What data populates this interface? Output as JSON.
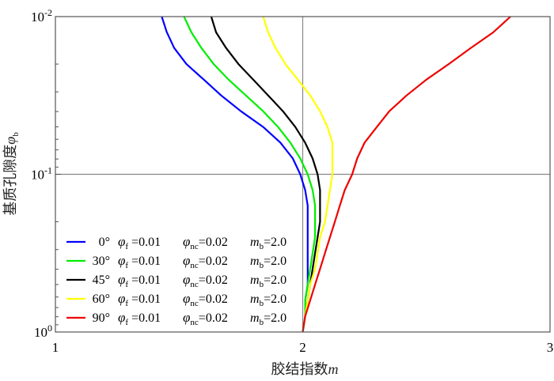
{
  "chart_data": {
    "type": "line",
    "title": "",
    "xlabel": "胶结指数m",
    "xlabel_main": "胶结指数",
    "xlabel_var": "m",
    "ylabel": "基质孔隙度φb",
    "ylabel_main": "基质孔隙度",
    "ylabel_var": "φ",
    "ylabel_sub": "b",
    "xlim": [
      1,
      3
    ],
    "ylim": [
      1,
      0.01
    ],
    "yscale": "log",
    "yaxis_inverted": true,
    "grid": false,
    "reference_lines": {
      "x": 2,
      "y": 0.1
    },
    "x_ticks": [
      "1",
      "2",
      "3"
    ],
    "y_ticks": [
      {
        "base": "10",
        "exp": "-2",
        "value": 0.01
      },
      {
        "base": "10",
        "exp": "-1",
        "value": 0.1
      },
      {
        "base": "10",
        "exp": "0",
        "value": 1
      }
    ],
    "legend_position": "bottom-left",
    "series": [
      {
        "name": "0°",
        "color": "#0000ff",
        "phi_f": "0.01",
        "phi_nc": "0.02",
        "m_b": "2.0",
        "points": [
          [
            1.43,
            0.01
          ],
          [
            1.45,
            0.0125
          ],
          [
            1.48,
            0.0158
          ],
          [
            1.53,
            0.02
          ],
          [
            1.6,
            0.0251
          ],
          [
            1.67,
            0.0316
          ],
          [
            1.75,
            0.0398
          ],
          [
            1.84,
            0.0501
          ],
          [
            1.91,
            0.0631
          ],
          [
            1.96,
            0.0794
          ],
          [
            1.99,
            0.1
          ],
          [
            2.01,
            0.126
          ],
          [
            2.02,
            0.158
          ],
          [
            2.02,
            0.2
          ],
          [
            2.02,
            0.251
          ],
          [
            2.02,
            0.316
          ],
          [
            2.02,
            0.398
          ],
          [
            2.02,
            0.501
          ],
          [
            2.01,
            0.631
          ],
          [
            2.01,
            0.794
          ],
          [
            2.0,
            1.0
          ]
        ]
      },
      {
        "name": "30°",
        "color": "#00ee00",
        "phi_f": "0.01",
        "phi_nc": "0.02",
        "m_b": "2.0",
        "points": [
          [
            1.52,
            0.01
          ],
          [
            1.55,
            0.0126
          ],
          [
            1.59,
            0.0158
          ],
          [
            1.64,
            0.02
          ],
          [
            1.7,
            0.0251
          ],
          [
            1.77,
            0.0316
          ],
          [
            1.84,
            0.0398
          ],
          [
            1.9,
            0.0501
          ],
          [
            1.95,
            0.0631
          ],
          [
            1.99,
            0.0794
          ],
          [
            2.02,
            0.1
          ],
          [
            2.04,
            0.126
          ],
          [
            2.05,
            0.158
          ],
          [
            2.05,
            0.2
          ],
          [
            2.05,
            0.251
          ],
          [
            2.04,
            0.316
          ],
          [
            2.03,
            0.398
          ],
          [
            2.02,
            0.501
          ],
          [
            2.01,
            0.631
          ],
          [
            2.01,
            0.794
          ],
          [
            2.0,
            1.0
          ]
        ]
      },
      {
        "name": "45°",
        "color": "#000000",
        "phi_f": "0.01",
        "phi_nc": "0.02",
        "m_b": "2.0",
        "points": [
          [
            1.63,
            0.01
          ],
          [
            1.65,
            0.0126
          ],
          [
            1.69,
            0.0158
          ],
          [
            1.74,
            0.02
          ],
          [
            1.8,
            0.0251
          ],
          [
            1.86,
            0.0316
          ],
          [
            1.92,
            0.0398
          ],
          [
            1.97,
            0.0501
          ],
          [
            2.01,
            0.0631
          ],
          [
            2.04,
            0.0794
          ],
          [
            2.06,
            0.1
          ],
          [
            2.07,
            0.126
          ],
          [
            2.07,
            0.158
          ],
          [
            2.07,
            0.2
          ],
          [
            2.06,
            0.251
          ],
          [
            2.05,
            0.316
          ],
          [
            2.04,
            0.398
          ],
          [
            2.03,
            0.501
          ],
          [
            2.02,
            0.631
          ],
          [
            2.01,
            0.794
          ],
          [
            2.0,
            1.0
          ]
        ]
      },
      {
        "name": "60°",
        "color": "#ffff00",
        "phi_f": "0.01",
        "phi_nc": "0.02",
        "m_b": "2.0",
        "points": [
          [
            1.84,
            0.01
          ],
          [
            1.86,
            0.0126
          ],
          [
            1.89,
            0.0158
          ],
          [
            1.93,
            0.02
          ],
          [
            1.98,
            0.0251
          ],
          [
            2.03,
            0.0316
          ],
          [
            2.07,
            0.0398
          ],
          [
            2.1,
            0.0501
          ],
          [
            2.12,
            0.0631
          ],
          [
            2.12,
            0.0794
          ],
          [
            2.12,
            0.1
          ],
          [
            2.11,
            0.126
          ],
          [
            2.1,
            0.158
          ],
          [
            2.09,
            0.2
          ],
          [
            2.07,
            0.251
          ],
          [
            2.06,
            0.316
          ],
          [
            2.05,
            0.398
          ],
          [
            2.03,
            0.501
          ],
          [
            2.02,
            0.631
          ],
          [
            2.01,
            0.794
          ],
          [
            2.0,
            1.0
          ]
        ]
      },
      {
        "name": "90°",
        "color": "#ee0000",
        "phi_f": "0.01",
        "phi_nc": "0.02",
        "m_b": "2.0",
        "points": [
          [
            2.84,
            0.01
          ],
          [
            2.77,
            0.0126
          ],
          [
            2.68,
            0.0158
          ],
          [
            2.59,
            0.02
          ],
          [
            2.5,
            0.0251
          ],
          [
            2.42,
            0.0316
          ],
          [
            2.35,
            0.0398
          ],
          [
            2.3,
            0.0501
          ],
          [
            2.25,
            0.0631
          ],
          [
            2.22,
            0.0794
          ],
          [
            2.2,
            0.1
          ],
          [
            2.17,
            0.126
          ],
          [
            2.15,
            0.158
          ],
          [
            2.13,
            0.2
          ],
          [
            2.11,
            0.251
          ],
          [
            2.09,
            0.316
          ],
          [
            2.07,
            0.398
          ],
          [
            2.05,
            0.501
          ],
          [
            2.03,
            0.631
          ],
          [
            2.01,
            0.794
          ],
          [
            2.0,
            1.0
          ]
        ]
      }
    ]
  }
}
